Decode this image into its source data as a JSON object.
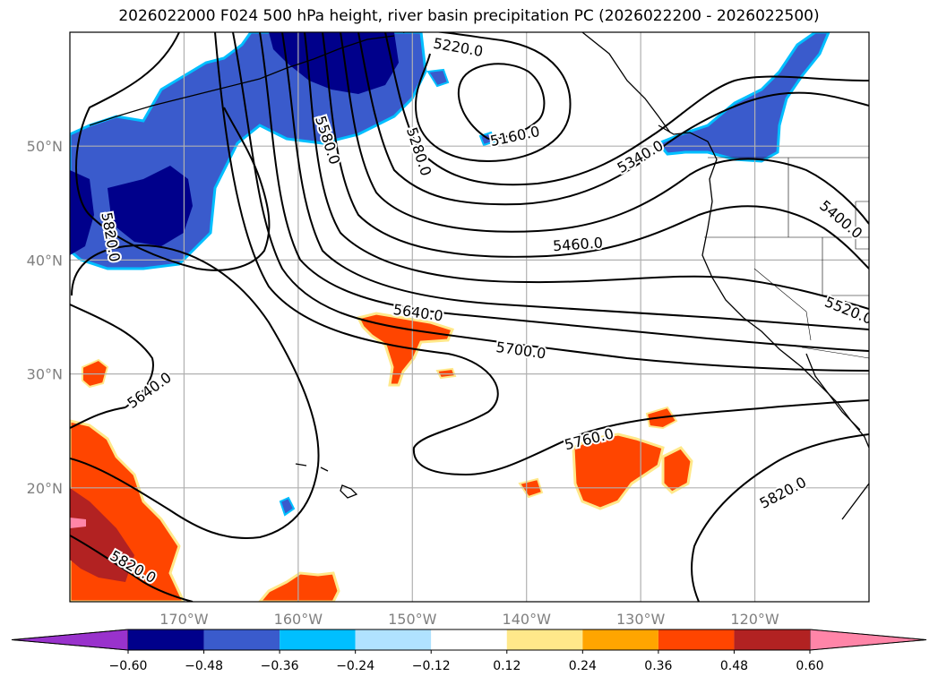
{
  "title": "2026022000 F024 500 hPa height, river basin precipitation PC (2026022200 - 2026022500)",
  "colors": {
    "neg_fill": "#3a5bcc",
    "neg_dark": "#00008b",
    "neg_light": "#00bfff",
    "pos_fill": "#ff4500",
    "pos_dark": "#b22222",
    "pos_light": "#ffe88a",
    "pos_pink": "#ff85a8",
    "gridline": "#b0b0b0",
    "frame": "#000000"
  },
  "map": {
    "projection": "equirectangular",
    "lon_min": -180,
    "lon_max": -110,
    "lat_min": 10,
    "lat_max": 60,
    "lat_ticks": [
      {
        "value": 20,
        "label": "20°N"
      },
      {
        "value": 30,
        "label": "30°N"
      },
      {
        "value": 40,
        "label": "40°N"
      },
      {
        "value": 50,
        "label": "50°N"
      }
    ],
    "lon_ticks": [
      {
        "value": -170,
        "label": "170°W"
      },
      {
        "value": -160,
        "label": "160°W"
      },
      {
        "value": -150,
        "label": "150°W"
      },
      {
        "value": -140,
        "label": "140°W"
      },
      {
        "value": -130,
        "label": "130°W"
      },
      {
        "value": -120,
        "label": "120°W"
      }
    ]
  },
  "contour_labels": [
    {
      "text": "5220.0",
      "lon": -146.0,
      "lat": 58.6,
      "angle": 10
    },
    {
      "text": "5160.0",
      "lon": -141.0,
      "lat": 50.8,
      "angle": -12
    },
    {
      "text": "5280.0",
      "lon": -149.5,
      "lat": 49.5,
      "angle": 72
    },
    {
      "text": "5580.0",
      "lon": -157.5,
      "lat": 50.5,
      "angle": 72
    },
    {
      "text": "5820.0",
      "lon": -176.5,
      "lat": 42.0,
      "angle": 80
    },
    {
      "text": "5340.0",
      "lon": -130.0,
      "lat": 49.0,
      "angle": -30
    },
    {
      "text": "5400.0",
      "lon": -112.5,
      "lat": 43.5,
      "angle": 40
    },
    {
      "text": "5460.0",
      "lon": -135.5,
      "lat": 41.3,
      "angle": -4
    },
    {
      "text": "5520.0",
      "lon": -111.8,
      "lat": 35.5,
      "angle": 22
    },
    {
      "text": "5640.0",
      "lon": -149.5,
      "lat": 35.3,
      "angle": 8
    },
    {
      "text": "5700.0",
      "lon": -140.5,
      "lat": 32.0,
      "angle": 8
    },
    {
      "text": "5640.0",
      "lon": -173.0,
      "lat": 28.5,
      "angle": -36
    },
    {
      "text": "5760.0",
      "lon": -134.5,
      "lat": 24.2,
      "angle": -14
    },
    {
      "text": "5820.0",
      "lon": -117.5,
      "lat": 19.5,
      "angle": -28
    },
    {
      "text": "5820.0",
      "lon": -174.5,
      "lat": 13.0,
      "angle": 30
    }
  ],
  "colorbar": {
    "ticks": [
      "−0.60",
      "−0.48",
      "−0.36",
      "−0.24",
      "−0.12",
      "0.12",
      "0.24",
      "0.36",
      "0.48",
      "0.60"
    ],
    "bin_colors": [
      "#9932cc",
      "#00008b",
      "#3a5bcc",
      "#00bfff",
      "#b0e2ff",
      "#ffffff",
      "#ffe88a",
      "#ffa500",
      "#ff4500",
      "#b22222",
      "#ff85a8",
      "#ff85a8"
    ]
  }
}
